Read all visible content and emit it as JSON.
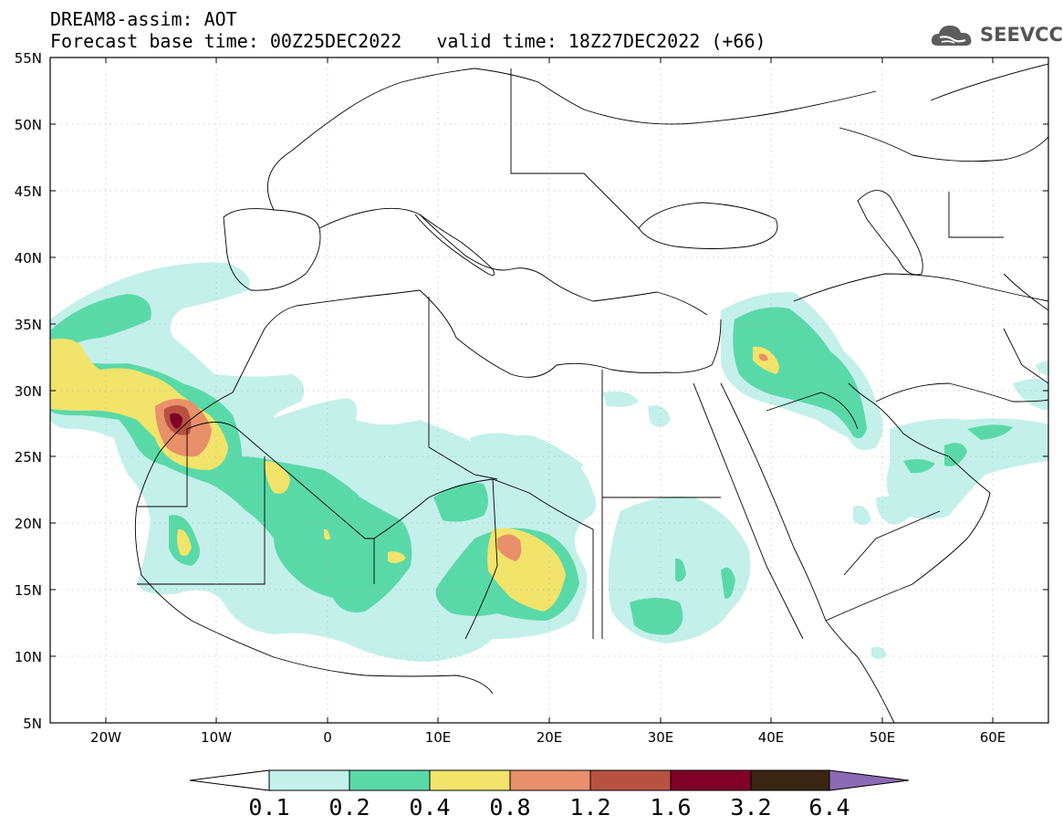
{
  "header": {
    "line1": "DREAM8-assim: AOT",
    "base_time": "Forecast base time: 00Z25DEC2022",
    "valid_time": "valid time: 18Z27DEC2022 (+66)"
  },
  "logo": {
    "text": "SEEVCCC",
    "icon": "cloud-icon"
  },
  "map": {
    "lat_labels": [
      "55N",
      "50N",
      "45N",
      "40N",
      "35N",
      "30N",
      "25N",
      "20N",
      "15N",
      "10N",
      "5N"
    ],
    "lon_labels": [
      "20W",
      "10W",
      "0",
      "10E",
      "20E",
      "30E",
      "40E",
      "50E",
      "60E"
    ],
    "extent": {
      "lon": [
        -25,
        65
      ],
      "lat": [
        5,
        55
      ]
    }
  },
  "colorbar": {
    "thresholds": [
      "0.1",
      "0.2",
      "0.4",
      "0.8",
      "1.2",
      "1.6",
      "3.2",
      "6.4"
    ],
    "colors": [
      "#ffffff",
      "#c4f0ea",
      "#5ad9a8",
      "#f2e46a",
      "#e8906a",
      "#b85240",
      "#800028",
      "#3a2412",
      "#8c6ab4"
    ]
  }
}
